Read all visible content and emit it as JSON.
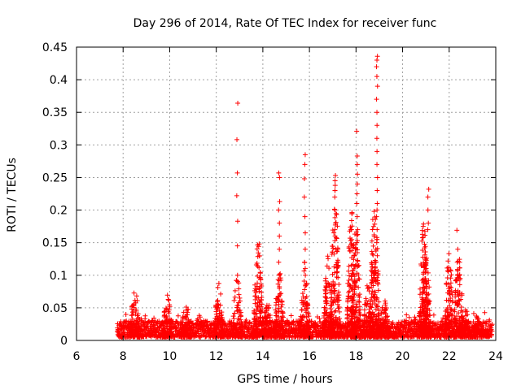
{
  "chart_data": {
    "type": "scatter",
    "title": "Day 296 of 2014, Rate Of TEC Index for receiver func",
    "xlabel": "GPS time / hours",
    "ylabel": "ROTI / TECUs",
    "xlim": [
      6,
      24
    ],
    "ylim": [
      0,
      0.45
    ],
    "xticks": [
      "6",
      "8",
      "10",
      "12",
      "14",
      "16",
      "18",
      "20",
      "22",
      "24"
    ],
    "yticks": [
      "0",
      "0.05",
      "0.1",
      "0.15",
      "0.2",
      "0.25",
      "0.3",
      "0.35",
      "0.4",
      "0.45"
    ],
    "grid": true,
    "marker": "+",
    "color": "#ff0000",
    "x_range_of_data": [
      7.75,
      23.85
    ],
    "baseline_band": [
      0.005,
      0.03
    ],
    "bursts": [
      {
        "center": 8.5,
        "peak": 0.083
      },
      {
        "center": 9.9,
        "peak": 0.072
      },
      {
        "center": 10.7,
        "peak": 0.06
      },
      {
        "center": 12.1,
        "peak": 0.09
      },
      {
        "center": 12.9,
        "peak": 0.1
      },
      {
        "center": 13.8,
        "peak": 0.155
      },
      {
        "center": 14.2,
        "peak": 0.06
      },
      {
        "center": 14.7,
        "peak": 0.11
      },
      {
        "center": 15.8,
        "peak": 0.12
      },
      {
        "center": 16.8,
        "peak": 0.13
      },
      {
        "center": 17.1,
        "peak": 0.23
      },
      {
        "center": 17.8,
        "peak": 0.2
      },
      {
        "center": 18.0,
        "peak": 0.19
      },
      {
        "center": 18.5,
        "peak": 0.09
      },
      {
        "center": 18.8,
        "peak": 0.22
      },
      {
        "center": 19.2,
        "peak": 0.07
      },
      {
        "center": 20.9,
        "peak": 0.18
      },
      {
        "center": 21.0,
        "peak": 0.15
      },
      {
        "center": 22.0,
        "peak": 0.135
      },
      {
        "center": 22.4,
        "peak": 0.14
      },
      {
        "center": 22.7,
        "peak": 0.05
      },
      {
        "center": 23.2,
        "peak": 0.04
      }
    ],
    "vertical_spikes": [
      {
        "x": 12.9,
        "values": [
          0.364,
          0.308,
          0.257,
          0.222,
          0.183,
          0.145,
          0.1
        ]
      },
      {
        "x": 14.7,
        "values": [
          0.257,
          0.25,
          0.213,
          0.2,
          0.18,
          0.16,
          0.14,
          0.12,
          0.1,
          0.08
        ]
      },
      {
        "x": 15.8,
        "values": [
          0.285,
          0.27,
          0.248,
          0.22,
          0.19,
          0.165,
          0.14,
          0.12,
          0.1
        ]
      },
      {
        "x": 17.1,
        "values": [
          0.253,
          0.245,
          0.238,
          0.23,
          0.22,
          0.2,
          0.17,
          0.16,
          0.14
        ]
      },
      {
        "x": 18.05,
        "values": [
          0.321,
          0.283,
          0.27,
          0.255,
          0.24,
          0.225,
          0.21,
          0.19,
          0.17,
          0.15
        ]
      },
      {
        "x": 18.9,
        "values": [
          0.436,
          0.43,
          0.42,
          0.405,
          0.39,
          0.37,
          0.35,
          0.33,
          0.31,
          0.29,
          0.27,
          0.25,
          0.23,
          0.21,
          0.2,
          0.19,
          0.17,
          0.15,
          0.13
        ]
      },
      {
        "x": 21.1,
        "values": [
          0.232,
          0.22,
          0.2,
          0.18,
          0.17
        ]
      },
      {
        "x": 22.35,
        "values": [
          0.169,
          0.14,
          0.12,
          0.1
        ]
      }
    ]
  }
}
